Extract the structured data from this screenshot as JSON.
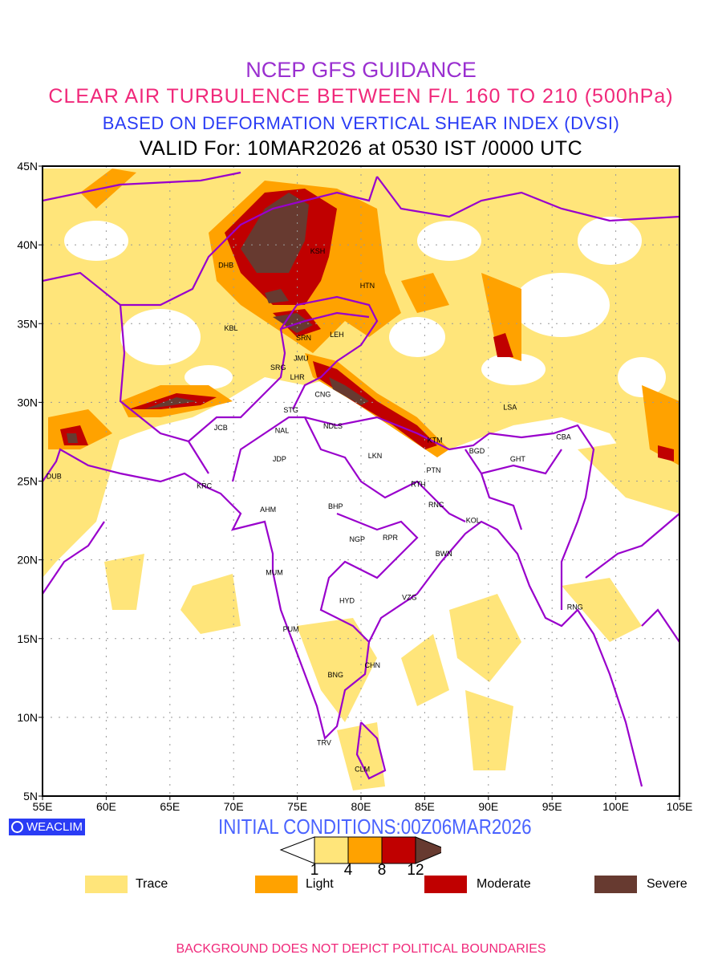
{
  "header": {
    "line1": "NCEP GFS GUIDANCE",
    "line2": "CLEAR AIR TURBULENCE BETWEEN F/L 160 TO 210 (500hPa)",
    "line3": "BASED ON DEFORMATION VERTICAL SHEAR INDEX (DVSI)",
    "line4": "VALID For: 10MAR2026 at 0530 IST /0000 UTC"
  },
  "map": {
    "lon_ticks": [
      "55E",
      "60E",
      "65E",
      "70E",
      "75E",
      "80E",
      "85E",
      "90E",
      "95E",
      "100E",
      "105E"
    ],
    "lat_ticks": [
      "45N",
      "40N",
      "35N",
      "30N",
      "25N",
      "20N",
      "15N",
      "10N",
      "5N"
    ],
    "lon_range": [
      55,
      105
    ],
    "lat_range": [
      5,
      45
    ],
    "cities": [
      "DHB",
      "KSH",
      "HTN",
      "KBL",
      "SRN",
      "LEH",
      "JMU",
      "SRG",
      "LHR",
      "CNG",
      "STG",
      "JCB",
      "NAL",
      "NDLS",
      "LKN",
      "JDP",
      "DUB",
      "KRC",
      "AHM",
      "BHP",
      "NGP",
      "RPR",
      "MUM",
      "HYD",
      "VZG",
      "PUM",
      "CHN",
      "BNG",
      "TRV",
      "CLM",
      "LSA",
      "KTM",
      "BGD",
      "GHT",
      "CBA",
      "PTN",
      "RTH",
      "RNC",
      "KOL",
      "BWN",
      "RNG"
    ]
  },
  "footer": {
    "logo": "WEACLIM",
    "initial_conditions": "INITIAL CONDITIONS:00Z06MAR2026",
    "colorbar_ticks": [
      "1",
      "4",
      "8",
      "12"
    ],
    "legend": [
      {
        "label": "Trace",
        "color": "#FFE57A"
      },
      {
        "label": "Light",
        "color": "#FFA200"
      },
      {
        "label": "Moderate",
        "color": "#C00000"
      },
      {
        "label": "Severe",
        "color": "#673A30"
      }
    ],
    "disclaimer": "BACKGROUND DOES NOT DEPICT POLITICAL BOUNDARIES"
  },
  "colors": {
    "boundary": "#9900CC",
    "grid": "#999999"
  }
}
